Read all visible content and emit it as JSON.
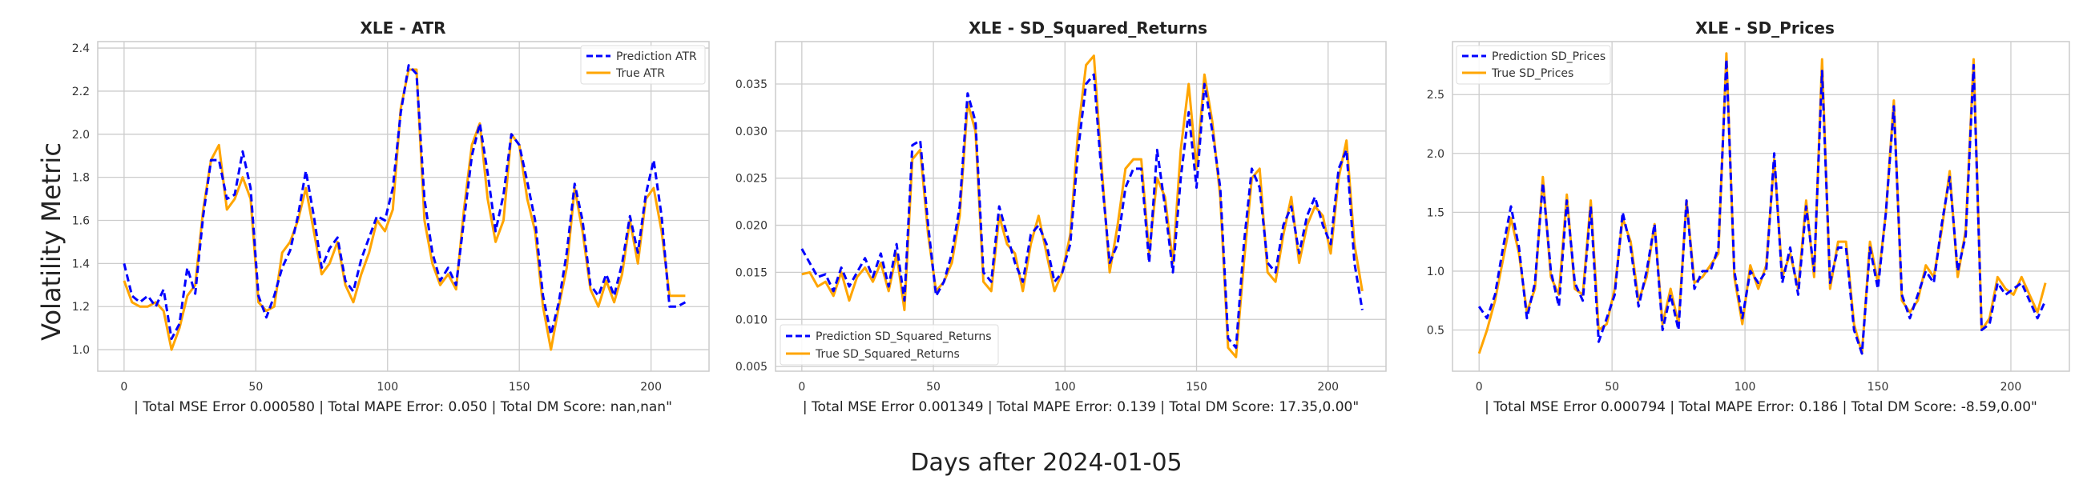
{
  "figure": {
    "ylabel": "Volatility Metric",
    "xlabel": "Days after 2024-01-05"
  },
  "chart_data": [
    {
      "type": "line",
      "title": "XLE - ATR",
      "metrics_text": "| Total MSE Error 0.000580 | Total MAPE Error: 0.050 | Total DM Score: nan,nan\"",
      "xlim": [
        -10,
        222
      ],
      "ylim": [
        0.9,
        2.43
      ],
      "xticks": [
        0,
        50,
        100,
        150,
        200
      ],
      "yticks": [
        1.0,
        1.2,
        1.4,
        1.6,
        1.8,
        2.0,
        2.2,
        2.4
      ],
      "ytick_labels": [
        "1.0",
        "1.2",
        "1.4",
        "1.6",
        "1.8",
        "2.0",
        "2.2",
        "2.4"
      ],
      "legend_loc": "upper right",
      "grid": true,
      "series": [
        {
          "name": "Prediction ATR",
          "color": "#0000ff",
          "style": "dashed",
          "x": [
            0,
            3,
            6,
            9,
            12,
            15,
            18,
            21,
            24,
            27,
            30,
            33,
            36,
            39,
            42,
            45,
            48,
            51,
            54,
            57,
            60,
            63,
            66,
            69,
            72,
            75,
            78,
            81,
            84,
            87,
            90,
            93,
            96,
            99,
            102,
            105,
            108,
            111,
            114,
            117,
            120,
            123,
            126,
            129,
            132,
            135,
            138,
            141,
            144,
            147,
            150,
            153,
            156,
            159,
            162,
            165,
            168,
            171,
            174,
            177,
            180,
            183,
            186,
            189,
            192,
            195,
            198,
            201,
            204,
            207,
            210,
            213
          ],
          "y": [
            1.4,
            1.25,
            1.22,
            1.25,
            1.2,
            1.28,
            1.05,
            1.12,
            1.38,
            1.26,
            1.62,
            1.88,
            1.88,
            1.7,
            1.72,
            1.92,
            1.75,
            1.25,
            1.15,
            1.25,
            1.38,
            1.46,
            1.62,
            1.83,
            1.62,
            1.38,
            1.47,
            1.52,
            1.32,
            1.27,
            1.42,
            1.52,
            1.62,
            1.6,
            1.75,
            2.1,
            2.32,
            2.28,
            1.7,
            1.45,
            1.32,
            1.38,
            1.3,
            1.6,
            1.9,
            2.05,
            1.82,
            1.55,
            1.72,
            2.0,
            1.95,
            1.78,
            1.6,
            1.25,
            1.07,
            1.22,
            1.45,
            1.77,
            1.6,
            1.3,
            1.25,
            1.35,
            1.25,
            1.4,
            1.62,
            1.45,
            1.72,
            1.88,
            1.62,
            1.2,
            1.2,
            1.22
          ]
        },
        {
          "name": "True ATR",
          "color": "#ffa500",
          "style": "solid",
          "x": [
            0,
            3,
            6,
            9,
            12,
            15,
            18,
            21,
            24,
            27,
            30,
            33,
            36,
            39,
            42,
            45,
            48,
            51,
            54,
            57,
            60,
            63,
            66,
            69,
            72,
            75,
            78,
            81,
            84,
            87,
            90,
            93,
            96,
            99,
            102,
            105,
            108,
            111,
            114,
            117,
            120,
            123,
            126,
            129,
            132,
            135,
            138,
            141,
            144,
            147,
            150,
            153,
            156,
            159,
            162,
            165,
            168,
            171,
            174,
            177,
            180,
            183,
            186,
            189,
            192,
            195,
            198,
            201,
            204,
            207,
            210,
            213
          ],
          "y": [
            1.32,
            1.22,
            1.2,
            1.2,
            1.22,
            1.18,
            1.0,
            1.1,
            1.25,
            1.3,
            1.65,
            1.88,
            1.95,
            1.65,
            1.7,
            1.8,
            1.7,
            1.22,
            1.18,
            1.2,
            1.45,
            1.5,
            1.6,
            1.75,
            1.55,
            1.35,
            1.4,
            1.5,
            1.3,
            1.22,
            1.35,
            1.45,
            1.6,
            1.55,
            1.65,
            2.12,
            2.3,
            2.3,
            1.6,
            1.4,
            1.3,
            1.35,
            1.28,
            1.65,
            1.95,
            2.05,
            1.7,
            1.5,
            1.6,
            2.0,
            1.95,
            1.7,
            1.55,
            1.2,
            1.0,
            1.2,
            1.38,
            1.75,
            1.55,
            1.28,
            1.2,
            1.32,
            1.22,
            1.35,
            1.6,
            1.4,
            1.7,
            1.75,
            1.55,
            1.25,
            1.25,
            1.25
          ]
        }
      ]
    },
    {
      "type": "line",
      "title": "XLE - SD_Squared_Returns",
      "metrics_text": "| Total MSE Error 0.001349 | Total MAPE Error: 0.139 | Total DM Score: 17.35,0.00\"",
      "xlim": [
        -10,
        222
      ],
      "ylim": [
        0.0045,
        0.0395
      ],
      "xticks": [
        0,
        50,
        100,
        150,
        200
      ],
      "yticks": [
        0.005,
        0.01,
        0.015,
        0.02,
        0.025,
        0.03,
        0.035
      ],
      "ytick_labels": [
        "0.005",
        "0.010",
        "0.015",
        "0.020",
        "0.025",
        "0.030",
        "0.035"
      ],
      "legend_loc": "lower left",
      "grid": true,
      "series": [
        {
          "name": "Prediction SD_Squared_Returns",
          "color": "#0000ff",
          "style": "dashed",
          "x": [
            0,
            3,
            6,
            9,
            12,
            15,
            18,
            21,
            24,
            27,
            30,
            33,
            36,
            39,
            42,
            45,
            48,
            51,
            54,
            57,
            60,
            63,
            66,
            69,
            72,
            75,
            78,
            81,
            84,
            87,
            90,
            93,
            96,
            99,
            102,
            105,
            108,
            111,
            114,
            117,
            120,
            123,
            126,
            129,
            132,
            135,
            138,
            141,
            144,
            147,
            150,
            153,
            156,
            159,
            162,
            165,
            168,
            171,
            174,
            177,
            180,
            183,
            186,
            189,
            192,
            195,
            198,
            201,
            204,
            207,
            210,
            213
          ],
          "y": [
            0.0175,
            0.016,
            0.0145,
            0.0148,
            0.013,
            0.0155,
            0.0135,
            0.015,
            0.0165,
            0.0145,
            0.017,
            0.0135,
            0.018,
            0.012,
            0.0285,
            0.029,
            0.02,
            0.0125,
            0.014,
            0.017,
            0.022,
            0.034,
            0.031,
            0.015,
            0.014,
            0.022,
            0.019,
            0.016,
            0.014,
            0.019,
            0.02,
            0.018,
            0.014,
            0.015,
            0.018,
            0.028,
            0.035,
            0.036,
            0.025,
            0.016,
            0.018,
            0.024,
            0.026,
            0.026,
            0.016,
            0.028,
            0.022,
            0.015,
            0.025,
            0.032,
            0.024,
            0.035,
            0.03,
            0.024,
            0.008,
            0.007,
            0.018,
            0.026,
            0.024,
            0.016,
            0.015,
            0.02,
            0.022,
            0.017,
            0.021,
            0.023,
            0.02,
            0.018,
            0.026,
            0.028,
            0.016,
            0.011
          ]
        },
        {
          "name": "True SD_Squared_Returns",
          "color": "#ffa500",
          "style": "solid",
          "x": [
            0,
            3,
            6,
            9,
            12,
            15,
            18,
            21,
            24,
            27,
            30,
            33,
            36,
            39,
            42,
            45,
            48,
            51,
            54,
            57,
            60,
            63,
            66,
            69,
            72,
            75,
            78,
            81,
            84,
            87,
            90,
            93,
            96,
            99,
            102,
            105,
            108,
            111,
            114,
            117,
            120,
            123,
            126,
            129,
            132,
            135,
            138,
            141,
            144,
            147,
            150,
            153,
            156,
            159,
            162,
            165,
            168,
            171,
            174,
            177,
            180,
            183,
            186,
            189,
            192,
            195,
            198,
            201,
            204,
            207,
            210,
            213
          ],
          "y": [
            0.0148,
            0.015,
            0.0135,
            0.014,
            0.0125,
            0.015,
            0.012,
            0.0145,
            0.0155,
            0.014,
            0.016,
            0.013,
            0.017,
            0.011,
            0.027,
            0.028,
            0.019,
            0.013,
            0.014,
            0.016,
            0.021,
            0.033,
            0.03,
            0.014,
            0.013,
            0.021,
            0.018,
            0.017,
            0.013,
            0.018,
            0.021,
            0.017,
            0.013,
            0.015,
            0.019,
            0.03,
            0.037,
            0.038,
            0.026,
            0.015,
            0.02,
            0.026,
            0.027,
            0.027,
            0.017,
            0.025,
            0.023,
            0.016,
            0.028,
            0.035,
            0.026,
            0.036,
            0.031,
            0.023,
            0.007,
            0.006,
            0.016,
            0.025,
            0.026,
            0.015,
            0.014,
            0.019,
            0.023,
            0.016,
            0.02,
            0.022,
            0.021,
            0.017,
            0.025,
            0.029,
            0.018,
            0.013
          ]
        }
      ]
    },
    {
      "type": "line",
      "title": "XLE - SD_Prices",
      "metrics_text": "| Total MSE Error 0.000794 | Total MAPE Error: 0.186 | Total DM Score: -8.59,0.00\"",
      "xlim": [
        -10,
        222
      ],
      "ylim": [
        0.15,
        2.95
      ],
      "xticks": [
        0,
        50,
        100,
        150,
        200
      ],
      "yticks": [
        0.5,
        1.0,
        1.5,
        2.0,
        2.5
      ],
      "ytick_labels": [
        "0.5",
        "1.0",
        "1.5",
        "2.0",
        "2.5"
      ],
      "legend_loc": "upper left",
      "grid": true,
      "series": [
        {
          "name": "Prediction SD_Prices",
          "color": "#0000ff",
          "style": "dashed",
          "x": [
            0,
            3,
            6,
            9,
            12,
            15,
            18,
            21,
            24,
            27,
            30,
            33,
            36,
            39,
            42,
            45,
            48,
            51,
            54,
            57,
            60,
            63,
            66,
            69,
            72,
            75,
            78,
            81,
            84,
            87,
            90,
            93,
            96,
            99,
            102,
            105,
            108,
            111,
            114,
            117,
            120,
            123,
            126,
            129,
            132,
            135,
            138,
            141,
            144,
            147,
            150,
            153,
            156,
            159,
            162,
            165,
            168,
            171,
            174,
            177,
            180,
            183,
            186,
            189,
            192,
            195,
            198,
            201,
            204,
            207,
            210,
            213
          ],
          "y": [
            0.7,
            0.6,
            0.8,
            1.2,
            1.55,
            1.2,
            0.6,
            0.9,
            1.75,
            1.0,
            0.7,
            1.6,
            0.9,
            0.75,
            1.55,
            0.4,
            0.6,
            0.8,
            1.5,
            1.2,
            0.7,
            1.0,
            1.4,
            0.5,
            0.8,
            0.5,
            1.6,
            0.85,
            1.0,
            1.0,
            1.2,
            2.8,
            1.0,
            0.6,
            1.0,
            0.9,
            1.0,
            2.0,
            0.9,
            1.2,
            0.8,
            1.55,
            1.0,
            2.7,
            0.9,
            1.2,
            1.2,
            0.5,
            0.3,
            1.2,
            0.85,
            1.5,
            2.4,
            0.8,
            0.6,
            0.8,
            1.0,
            0.9,
            1.4,
            1.8,
            1.0,
            1.3,
            2.75,
            0.5,
            0.55,
            0.9,
            0.8,
            0.85,
            0.9,
            0.75,
            0.6,
            0.75
          ]
        },
        {
          "name": "True SD_Prices",
          "color": "#ffa500",
          "style": "solid",
          "x": [
            0,
            3,
            6,
            9,
            12,
            15,
            18,
            21,
            24,
            27,
            30,
            33,
            36,
            39,
            42,
            45,
            48,
            51,
            54,
            57,
            60,
            63,
            66,
            69,
            72,
            75,
            78,
            81,
            84,
            87,
            90,
            93,
            96,
            99,
            102,
            105,
            108,
            111,
            114,
            117,
            120,
            123,
            126,
            129,
            132,
            135,
            138,
            141,
            144,
            147,
            150,
            153,
            156,
            159,
            162,
            165,
            168,
            171,
            174,
            177,
            180,
            183,
            186,
            189,
            192,
            195,
            198,
            201,
            204,
            207,
            210,
            213
          ],
          "y": [
            0.3,
            0.5,
            0.75,
            1.1,
            1.45,
            1.15,
            0.65,
            0.85,
            1.8,
            0.95,
            0.8,
            1.65,
            0.85,
            0.8,
            1.6,
            0.5,
            0.55,
            0.85,
            1.45,
            1.25,
            0.75,
            0.95,
            1.4,
            0.55,
            0.85,
            0.55,
            1.6,
            0.9,
            0.95,
            1.05,
            1.15,
            2.85,
            0.95,
            0.55,
            1.05,
            0.85,
            1.05,
            1.95,
            0.95,
            1.15,
            0.85,
            1.6,
            0.95,
            2.8,
            0.85,
            1.25,
            1.25,
            0.55,
            0.3,
            1.25,
            0.9,
            1.5,
            2.45,
            0.75,
            0.65,
            0.75,
            1.05,
            0.95,
            1.35,
            1.85,
            0.95,
            1.35,
            2.8,
            0.5,
            0.6,
            0.95,
            0.85,
            0.8,
            0.95,
            0.8,
            0.65,
            0.9
          ]
        }
      ]
    }
  ]
}
